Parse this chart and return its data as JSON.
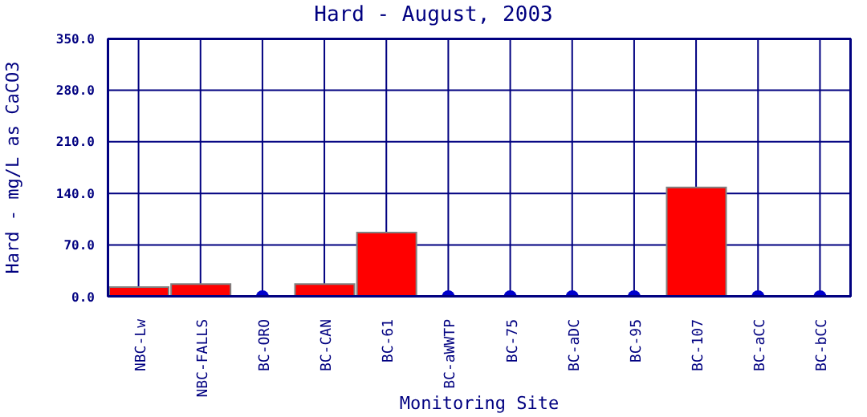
{
  "chart_data": {
    "type": "bar",
    "title": "Hard - August, 2003",
    "xlabel": "Monitoring Site",
    "ylabel": "Hard - mg/L as CaCO3",
    "categories": [
      "NBC-Lw",
      "NBC-FALLS",
      "BC-ORO",
      "BC-CAN",
      "BC-61",
      "BC-aWWTP",
      "BC-75",
      "BC-aDC",
      "BC-95",
      "BC-107",
      "BC-aCC",
      "BC-bCC"
    ],
    "series": [
      {
        "color": "#ff0000",
        "values": [
          13,
          17,
          null,
          17,
          87,
          null,
          null,
          null,
          null,
          148,
          null,
          null
        ]
      },
      {
        "type": "scatter",
        "color": "#0000cc",
        "marker": "circle",
        "x": [
          "BC-ORO",
          "BC-aWWTP",
          "BC-75",
          "BC-aDC",
          "BC-95",
          "BC-aCC",
          "BC-bCC"
        ],
        "values": [
          0,
          0,
          0,
          0,
          0,
          0,
          0
        ]
      }
    ],
    "ylim": [
      0,
      350
    ],
    "yticks": [
      {
        "value": 0,
        "label": "0.0"
      },
      {
        "value": 70,
        "label": "70.0"
      },
      {
        "value": 140,
        "label": "140.0"
      },
      {
        "value": 210,
        "label": "210.0"
      },
      {
        "value": 280,
        "label": "280.0"
      },
      {
        "value": 350,
        "label": "350.0"
      }
    ],
    "grid": true
  }
}
